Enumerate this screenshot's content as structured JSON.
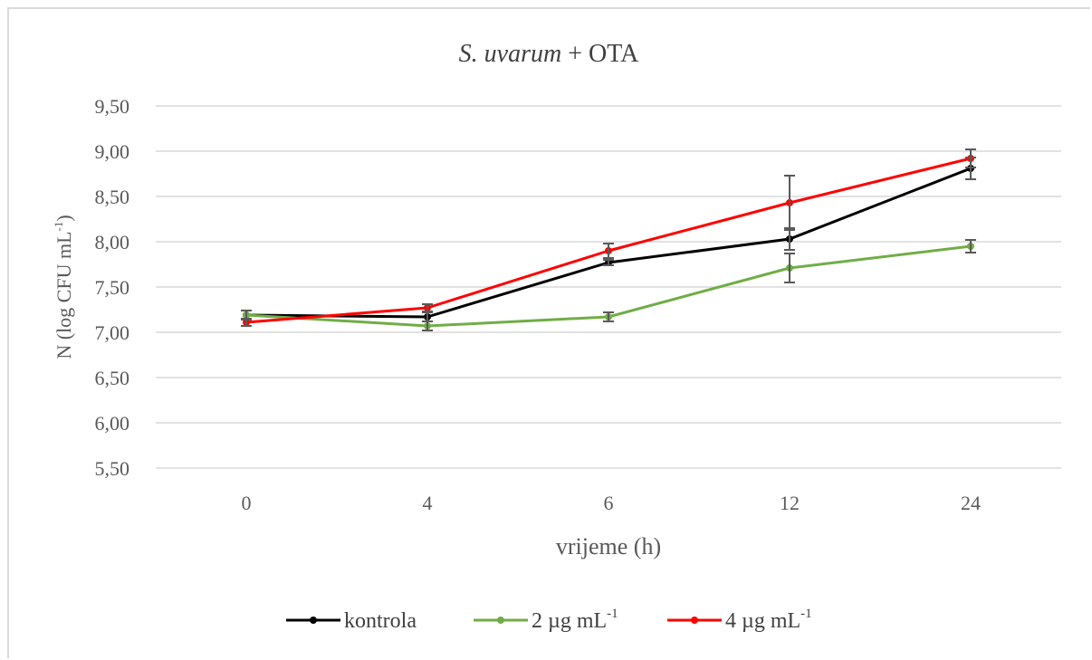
{
  "chart_data": {
    "type": "line",
    "title_italic": "S. uvarum",
    "title_rest": " + OTA",
    "xlabel": "vrijeme (h)",
    "ylabel_main": "N (log CFU mL",
    "ylabel_sup": "-1",
    "ylabel_close": ")",
    "categories": [
      "0",
      "4",
      "6",
      "12",
      "24"
    ],
    "ylim": [
      5.5,
      9.5
    ],
    "yticks": [
      "5,50",
      "6,00",
      "6,50",
      "7,00",
      "7,50",
      "8,00",
      "8,50",
      "9,00",
      "9,50"
    ],
    "ytick_values": [
      5.5,
      6.0,
      6.5,
      7.0,
      7.5,
      8.0,
      8.5,
      9.0,
      9.5
    ],
    "grid": true,
    "legend_position": "bottom",
    "series": [
      {
        "name": "kontrola",
        "name_sup": "",
        "color": "#000000",
        "values": [
          7.19,
          7.17,
          7.77,
          8.03,
          8.81
        ],
        "errors": [
          0.05,
          0.05,
          0.03,
          0.12,
          0.12
        ]
      },
      {
        "name": "2 µg mL",
        "name_sup": "-1",
        "color": "#70ad47",
        "values": [
          7.19,
          7.07,
          7.17,
          7.71,
          7.95
        ],
        "errors": [
          0.05,
          0.05,
          0.05,
          0.16,
          0.07
        ]
      },
      {
        "name": "4 µg mL",
        "name_sup": "-1",
        "color": "#ff0000",
        "values": [
          7.11,
          7.27,
          7.9,
          8.43,
          8.92
        ],
        "errors": [
          0.04,
          0.04,
          0.08,
          0.3,
          0.1
        ]
      }
    ],
    "error_bar_color": "#595959"
  }
}
